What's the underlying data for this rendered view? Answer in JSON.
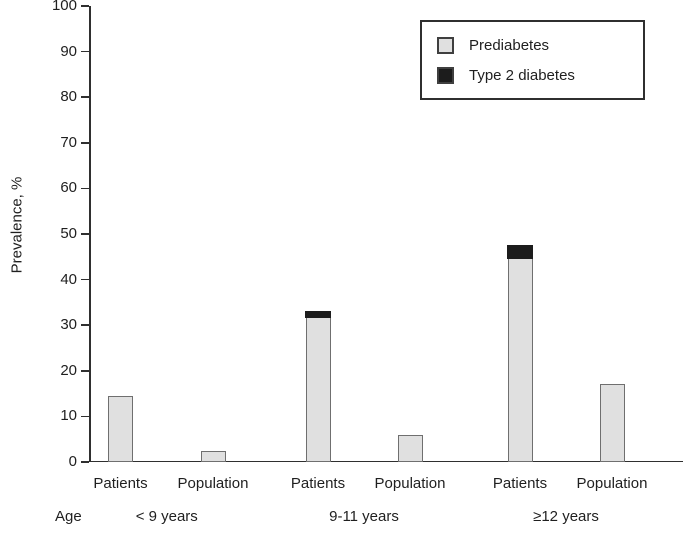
{
  "figure": {
    "background": "#ffffff",
    "text_color": "#1f1f1f",
    "axis_color": "#2f2f2f",
    "bar_border_color": "#6f6f6f"
  },
  "chart_data": {
    "type": "bar",
    "stacked": true,
    "title": "",
    "ylabel": "Prevalence, %",
    "xlabel": "Age",
    "ylim": [
      0,
      100
    ],
    "yticks": [
      0,
      10,
      20,
      30,
      40,
      50,
      60,
      70,
      80,
      90,
      100
    ],
    "grid": false,
    "legend_position": "top-right",
    "categories": [
      "Patients",
      "Population",
      "Patients",
      "Population",
      "Patients",
      "Population"
    ],
    "series": [
      {
        "name": "Prediabetes",
        "color": "#e0e0e0",
        "values": [
          14.5,
          2.5,
          31.5,
          6,
          44.5,
          17
        ]
      },
      {
        "name": "Type 2 diabetes",
        "color": "#1c1c1c",
        "values": [
          0,
          0,
          1.5,
          0,
          3,
          0
        ]
      }
    ],
    "age_groups": [
      {
        "label": "< 9 years",
        "bars": [
          "Patients",
          "Population"
        ]
      },
      {
        "label": "9-11 years",
        "bars": [
          "Patients",
          "Population"
        ]
      },
      {
        "label": "≥12 years",
        "bars": [
          "Patients",
          "Population"
        ]
      }
    ]
  }
}
